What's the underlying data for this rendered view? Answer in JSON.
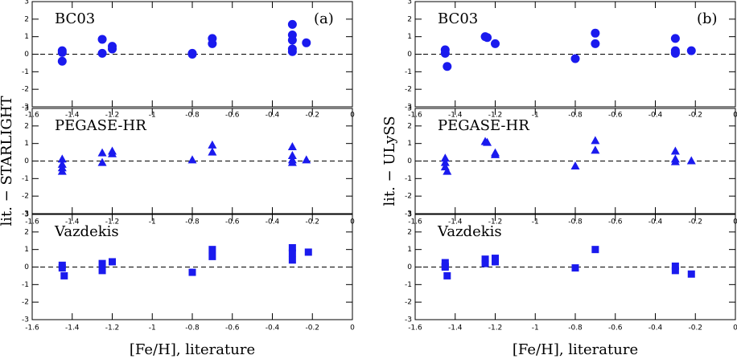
{
  "chart_data": [
    {
      "type": "scatter",
      "title": "BC03",
      "panel_label": "(a)",
      "marker": "circle",
      "color": "#1a1aee",
      "zero_line": true,
      "x": [
        -1.45,
        -1.45,
        -1.45,
        -1.25,
        -1.25,
        -1.2,
        -1.2,
        -0.8,
        -0.8,
        -0.7,
        -0.7,
        -0.3,
        -0.3,
        -0.3,
        -0.3,
        -0.3,
        -0.23
      ],
      "values": [
        0.2,
        0.1,
        -0.4,
        0.85,
        0.05,
        0.45,
        0.3,
        0.0,
        0.05,
        0.9,
        0.6,
        1.7,
        1.1,
        0.8,
        0.3,
        0.15,
        0.65
      ],
      "xlim": [
        -1.6,
        0
      ],
      "ylim": [
        -3,
        3
      ],
      "xticks": [
        -1.6,
        -1.4,
        -1.2,
        -1,
        -0.8,
        -0.6,
        -0.4,
        -0.2,
        0
      ],
      "yticks": [
        -3,
        -2,
        -1,
        0,
        1,
        2,
        3
      ]
    },
    {
      "type": "scatter",
      "title": "PEGASE-HR",
      "ylabel": "lit. − STARLIGHT",
      "marker": "triangle",
      "color": "#1a1aee",
      "zero_line": true,
      "x": [
        -1.45,
        -1.45,
        -1.45,
        -1.45,
        -1.25,
        -1.25,
        -1.2,
        -1.2,
        -0.8,
        -0.7,
        -0.7,
        -0.3,
        -0.3,
        -0.3,
        -0.3,
        -0.23
      ],
      "values": [
        0.1,
        -0.2,
        -0.4,
        -0.6,
        0.45,
        -0.1,
        0.55,
        0.4,
        0.05,
        0.9,
        0.5,
        0.8,
        0.3,
        0.05,
        -0.1,
        0.05
      ],
      "xlim": [
        -1.6,
        0
      ],
      "ylim": [
        -3,
        3
      ],
      "xticks": [
        -1.6,
        -1.4,
        -1.2,
        -1,
        -0.8,
        -0.6,
        -0.4,
        -0.2,
        0
      ],
      "yticks": [
        -3,
        -2,
        -1,
        0,
        1,
        2,
        3
      ]
    },
    {
      "type": "scatter",
      "title": "Vazdekis",
      "xlabel": "[Fe/H], literature",
      "marker": "square",
      "color": "#1a1aee",
      "zero_line": true,
      "x": [
        -1.45,
        -1.45,
        -1.44,
        -1.25,
        -1.25,
        -1.2,
        -0.8,
        -0.7,
        -0.7,
        -0.3,
        -0.3,
        -0.3,
        -0.22
      ],
      "values": [
        0.1,
        -0.05,
        -0.5,
        0.2,
        -0.2,
        0.3,
        -0.3,
        1.0,
        0.6,
        1.1,
        0.8,
        0.4,
        0.85
      ],
      "xlim": [
        -1.6,
        0
      ],
      "ylim": [
        -3,
        3
      ],
      "xticks": [
        -1.6,
        -1.4,
        -1.2,
        -1,
        -0.8,
        -0.6,
        -0.4,
        -0.2,
        0
      ],
      "yticks": [
        -3,
        -2,
        -1,
        0,
        1,
        2,
        3
      ]
    },
    {
      "type": "scatter",
      "title": "BC03",
      "panel_label": "(b)",
      "marker": "circle",
      "color": "#1a1aee",
      "zero_line": true,
      "x": [
        -1.45,
        -1.45,
        -1.44,
        -1.25,
        -1.24,
        -1.2,
        -0.8,
        -0.7,
        -0.7,
        -0.3,
        -0.3,
        -0.3,
        -0.3,
        -0.22
      ],
      "values": [
        0.25,
        0.05,
        -0.7,
        1.0,
        0.95,
        0.6,
        -0.25,
        1.2,
        0.6,
        0.9,
        0.2,
        0.05,
        0.1,
        0.2
      ],
      "xlim": [
        -1.6,
        0
      ],
      "ylim": [
        -3,
        3
      ],
      "xticks": [
        -1.6,
        -1.4,
        -1.2,
        -1,
        -0.8,
        -0.6,
        -0.4,
        -0.2,
        0
      ],
      "yticks": [
        -3,
        -2,
        -1,
        0,
        1,
        2,
        3
      ]
    },
    {
      "type": "scatter",
      "title": "PEGASE-HR",
      "ylabel": "lit. − ULySS",
      "marker": "triangle",
      "color": "#1a1aee",
      "zero_line": true,
      "x": [
        -1.45,
        -1.45,
        -1.45,
        -1.44,
        -1.25,
        -1.24,
        -1.2,
        -1.2,
        -0.8,
        -0.7,
        -0.7,
        -0.3,
        -0.3,
        -0.3,
        -0.22
      ],
      "values": [
        0.15,
        -0.1,
        -0.35,
        -0.6,
        1.1,
        1.05,
        0.45,
        0.35,
        -0.3,
        1.15,
        0.6,
        0.55,
        0.1,
        -0.05,
        0.0
      ],
      "xlim": [
        -1.6,
        0
      ],
      "ylim": [
        -3,
        3
      ],
      "xticks": [
        -1.6,
        -1.4,
        -1.2,
        -1,
        -0.8,
        -0.6,
        -0.4,
        -0.2,
        0
      ],
      "yticks": [
        -3,
        -2,
        -1,
        0,
        1,
        2,
        3
      ]
    },
    {
      "type": "scatter",
      "title": "Vazdekis",
      "xlabel": "[Fe/H], literature",
      "marker": "square",
      "color": "#1a1aee",
      "zero_line": true,
      "x": [
        -1.45,
        -1.45,
        -1.45,
        -1.44,
        -1.25,
        -1.25,
        -1.2,
        -1.2,
        -0.8,
        -0.7,
        -0.3,
        -0.3,
        -0.22
      ],
      "values": [
        0.25,
        0.05,
        0.0,
        -0.5,
        0.45,
        0.2,
        0.5,
        0.3,
        -0.05,
        1.0,
        0.05,
        -0.2,
        -0.4
      ],
      "xlim": [
        -1.6,
        0
      ],
      "ylim": [
        -3,
        3
      ],
      "xticks": [
        -1.6,
        -1.4,
        -1.2,
        -1,
        -0.8,
        -0.6,
        -0.4,
        -0.2,
        0
      ],
      "yticks": [
        -3,
        -2,
        -1,
        0,
        1,
        2,
        3
      ]
    }
  ]
}
